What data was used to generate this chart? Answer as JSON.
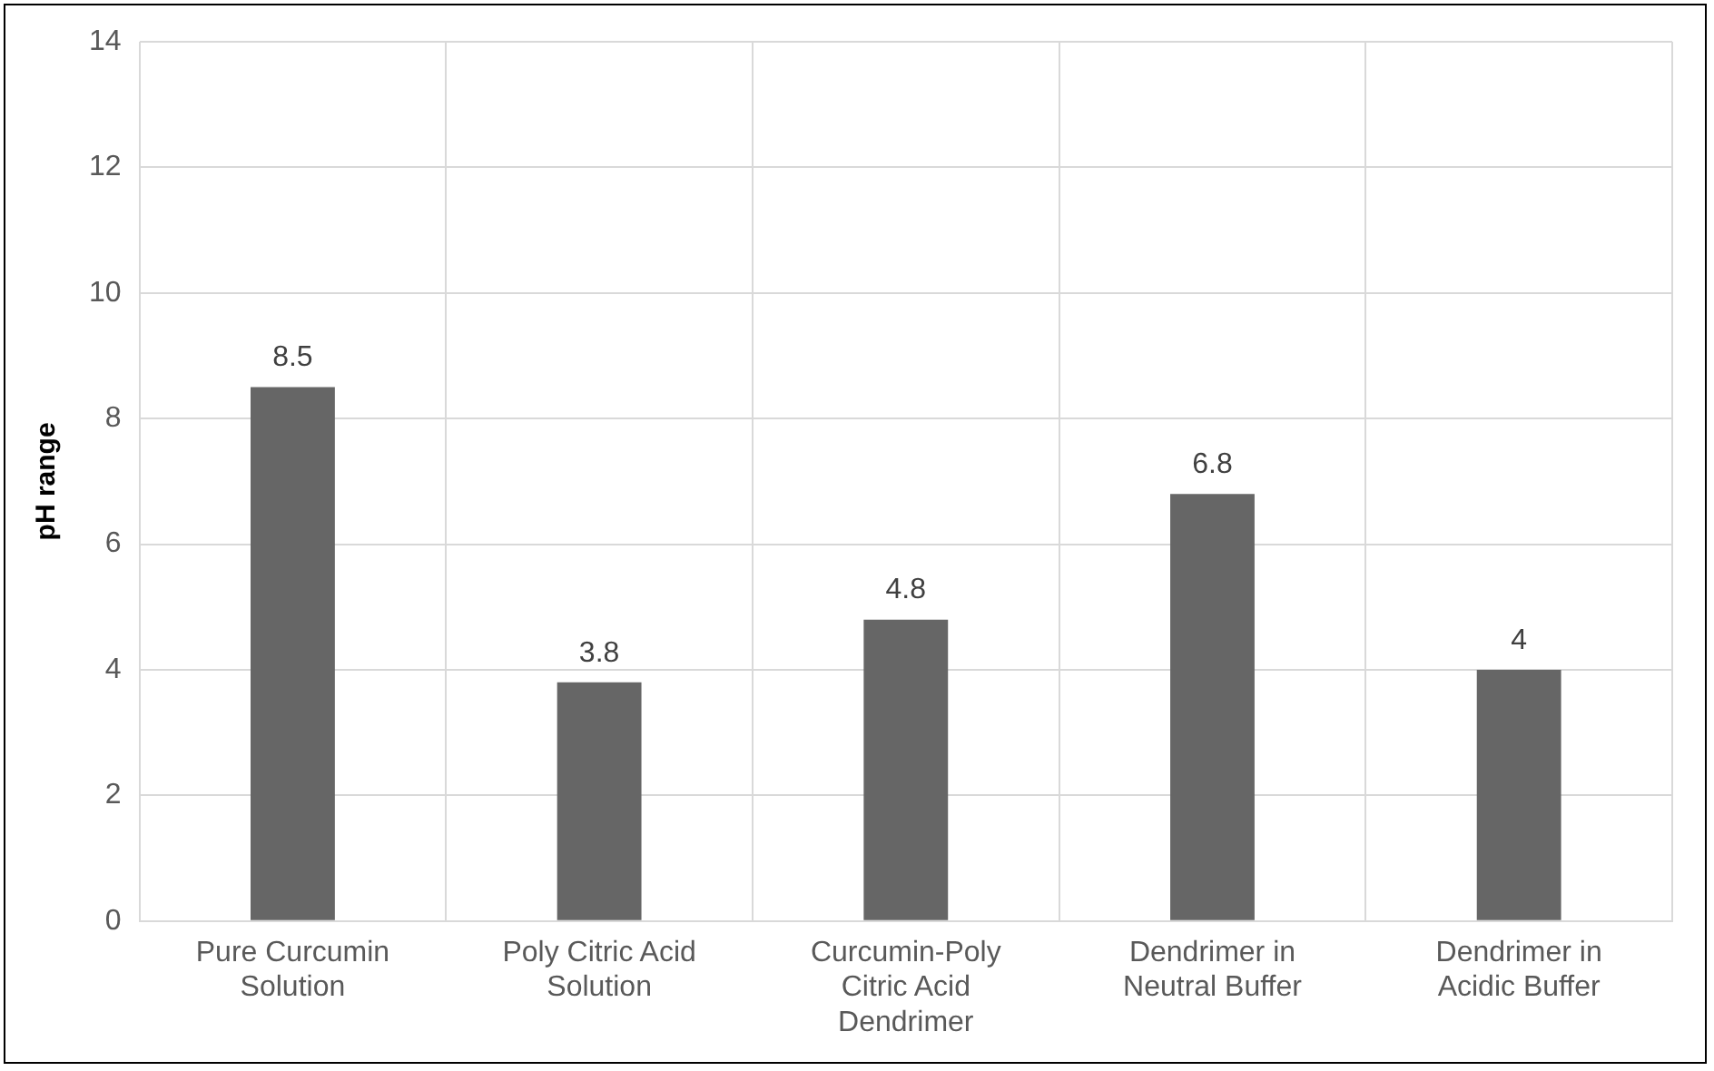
{
  "chart_data": {
    "type": "bar",
    "ylabel": "pH range",
    "categories": [
      "Pure Curcumin Solution",
      "Poly Citric Acid Solution",
      "Curcumin-Poly Citric Acid Dendrimer",
      "Dendrimer in Neutral Buffer",
      "Dendrimer in Acidic Buffer"
    ],
    "values": [
      8.5,
      3.8,
      4.8,
      6.8,
      4
    ],
    "color": "#666666",
    "ylim": [
      0,
      14
    ],
    "yticks": [
      0,
      2,
      4,
      6,
      8,
      10,
      12,
      14
    ],
    "grid": true,
    "data_labels": true,
    "legend": false
  }
}
